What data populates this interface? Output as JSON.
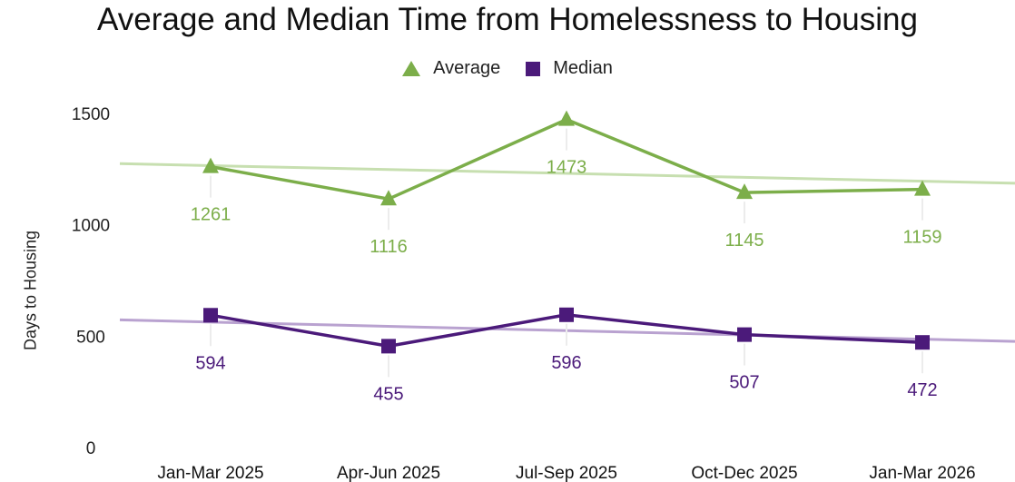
{
  "chart_data": {
    "type": "line",
    "title": "Average and Median Time from Homelessness to Housing",
    "xlabel": "",
    "ylabel": "Days to Housing",
    "categories": [
      "Jan-Mar 2025",
      "Apr-Jun 2025",
      "Jul-Sep 2025",
      "Oct-Dec 2025",
      "Jan-Mar 2026"
    ],
    "ylim": [
      0,
      1500
    ],
    "yticks": [
      0,
      500,
      1000,
      1500
    ],
    "grid": false,
    "legend_position": "top-center",
    "series": [
      {
        "name": "Average",
        "values": [
          1261,
          1116,
          1473,
          1145,
          1159
        ],
        "marker": "triangle",
        "color": "#7cae4a",
        "trendline_color": "#c7dfb0"
      },
      {
        "name": "Median",
        "values": [
          594,
          455,
          596,
          507,
          472
        ],
        "marker": "square",
        "color": "#4b1a7a",
        "trendline_color": "#b9a2d0"
      }
    ],
    "trendlines": true
  }
}
